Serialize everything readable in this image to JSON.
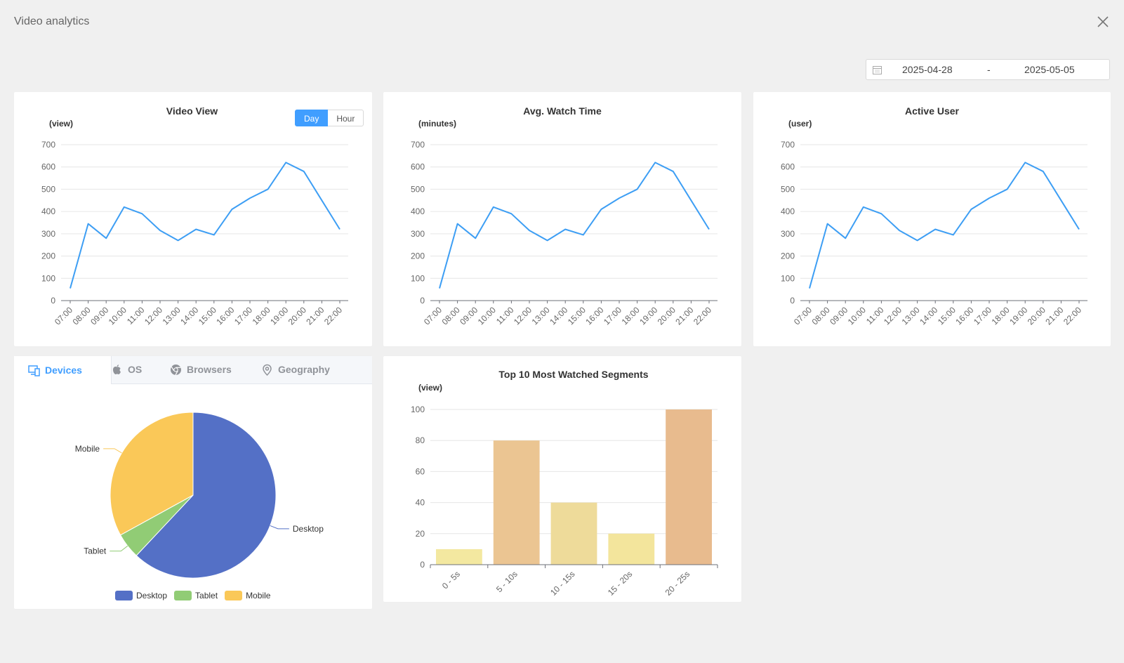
{
  "page_title": "Video analytics",
  "date_range": {
    "start": "2025-04-28",
    "separator": "-",
    "end": "2025-05-05"
  },
  "video_view": {
    "toggle": {
      "day": "Day",
      "hour": "Hour"
    }
  },
  "tabs": [
    {
      "label": "Devices",
      "icon": "devices-icon"
    },
    {
      "label": "OS",
      "icon": "apple-icon"
    },
    {
      "label": "Browsers",
      "icon": "chrome-icon"
    },
    {
      "label": "Geography",
      "icon": "location-pin-icon"
    }
  ],
  "colors": {
    "accent": "#409eff",
    "line": "#3d9ef4"
  },
  "chart_data": [
    {
      "type": "line",
      "title": "Video View",
      "ylabel": "(view)",
      "x": [
        "07:00",
        "08:00",
        "09:00",
        "10:00",
        "11:00",
        "12:00",
        "13:00",
        "14:00",
        "15:00",
        "16:00",
        "17:00",
        "18:00",
        "19:00",
        "20:00",
        "21:00",
        "22:00"
      ],
      "values": [
        55,
        345,
        280,
        420,
        390,
        315,
        270,
        320,
        295,
        410,
        460,
        500,
        620,
        580,
        450,
        320
      ],
      "ylim": [
        0,
        700
      ],
      "yticks": [
        0,
        100,
        200,
        300,
        400,
        500,
        600,
        700
      ],
      "grid": true
    },
    {
      "type": "line",
      "title": "Avg. Watch Time",
      "ylabel": "(minutes)",
      "x": [
        "07:00",
        "08:00",
        "09:00",
        "10:00",
        "11:00",
        "12:00",
        "13:00",
        "14:00",
        "15:00",
        "16:00",
        "17:00",
        "18:00",
        "19:00",
        "20:00",
        "21:00",
        "22:00"
      ],
      "values": [
        55,
        345,
        280,
        420,
        390,
        315,
        270,
        320,
        295,
        410,
        460,
        500,
        620,
        580,
        450,
        320
      ],
      "ylim": [
        0,
        700
      ],
      "yticks": [
        0,
        100,
        200,
        300,
        400,
        500,
        600,
        700
      ],
      "grid": true
    },
    {
      "type": "line",
      "title": "Active User",
      "ylabel": "(user)",
      "x": [
        "07:00",
        "08:00",
        "09:00",
        "10:00",
        "11:00",
        "12:00",
        "13:00",
        "14:00",
        "15:00",
        "16:00",
        "17:00",
        "18:00",
        "19:00",
        "20:00",
        "21:00",
        "22:00"
      ],
      "values": [
        55,
        345,
        280,
        420,
        390,
        315,
        270,
        320,
        295,
        410,
        460,
        500,
        620,
        580,
        450,
        320
      ],
      "ylim": [
        0,
        700
      ],
      "yticks": [
        0,
        100,
        200,
        300,
        400,
        500,
        600,
        700
      ],
      "grid": true
    },
    {
      "type": "pie",
      "slices": [
        {
          "name": "Desktop",
          "value": 62,
          "color": "#5470c6"
        },
        {
          "name": "Tablet",
          "value": 5,
          "color": "#91cc75"
        },
        {
          "name": "Mobile",
          "value": 33,
          "color": "#fac858"
        }
      ],
      "legend": "bottom"
    },
    {
      "type": "bar",
      "title": "Top 10 Most Watched Segments",
      "ylabel": "(view)",
      "categories": [
        "0 - 5s",
        "5 - 10s",
        "10 - 15s",
        "15 - 20s",
        "20 - 25s"
      ],
      "values": [
        10,
        80,
        40,
        20,
        100
      ],
      "colors": [
        "#f3e8a0",
        "#ebc592",
        "#eedb9a",
        "#f3e59c",
        "#e8bb8e"
      ],
      "ylim": [
        0,
        100
      ],
      "yticks": [
        0,
        20,
        40,
        60,
        80,
        100
      ],
      "grid": true
    }
  ]
}
